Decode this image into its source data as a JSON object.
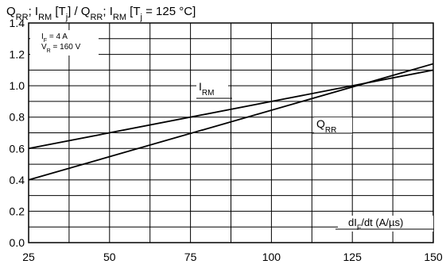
{
  "chart_data": {
    "type": "line",
    "title": "QRR; IRM [Tj] / QRR; IRM [Tj = 125 °C]",
    "title_parts": {
      "q1": "Q",
      "q1_sub": "RR",
      "sep1": "; I",
      "i1_sub": "RM",
      "bracket1": " [T",
      "t1_sub": "j",
      "mid": "] / Q",
      "q2_sub": "RR",
      "sep2": "; I",
      "i2_sub": "RM",
      "bracket2": " [T",
      "t2_sub": "j",
      "tail": " = 125 °C]"
    },
    "xlabel": "dIF/dt (A/µs)",
    "xlabel_parts": {
      "pre": "dI",
      "sub": "F",
      "post": "/dt (A/µs)"
    },
    "ylabel": "",
    "xlim": [
      25,
      150
    ],
    "ylim": [
      0.0,
      1.4
    ],
    "x_ticks": [
      25,
      50,
      75,
      100,
      125,
      150
    ],
    "y_ticks": [
      "0.0",
      "0.2",
      "0.4",
      "0.6",
      "0.8",
      "1.0",
      "1.2",
      "1.4"
    ],
    "x_minor_step": 12.5,
    "y_minor_step": 0.1,
    "grid": true,
    "conditions": {
      "if": {
        "pre": "I",
        "sub": "F",
        "post": " = 4 A"
      },
      "vr": {
        "pre": "V",
        "sub": "R",
        "post": " = 160 V"
      }
    },
    "series": [
      {
        "name": "IRM",
        "label": {
          "pre": "I",
          "sub": "RM"
        },
        "x": [
          25,
          150
        ],
        "y": [
          0.6,
          1.1
        ]
      },
      {
        "name": "QRR",
        "label": {
          "pre": "Q",
          "sub": "RR"
        },
        "x": [
          25,
          150
        ],
        "y": [
          0.4,
          1.14
        ]
      }
    ]
  }
}
